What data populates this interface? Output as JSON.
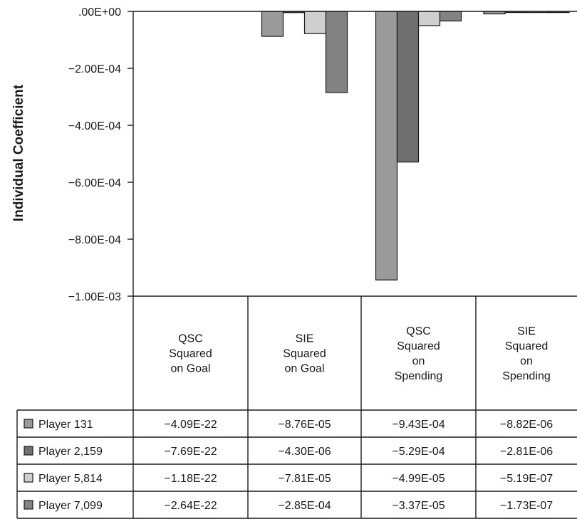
{
  "chart_data": {
    "type": "bar",
    "ylabel": "Individual Coefficient",
    "ylim": [
      -0.001,
      0
    ],
    "yticks": [
      {
        "value": 0,
        "label": ".00E+00"
      },
      {
        "value": -0.0002,
        "label": "−2.00E-04"
      },
      {
        "value": -0.0004,
        "label": "−4.00E-04"
      },
      {
        "value": -0.0006,
        "label": "−6.00E-04"
      },
      {
        "value": -0.0008,
        "label": "−8.00E-04"
      },
      {
        "value": -0.001,
        "label": "−1.00E-03"
      }
    ],
    "categories": [
      "QSC Squared on Goal",
      "SIE Squared on Goal",
      "QSC Squared on Spending",
      "SIE Squared on Spending"
    ],
    "category_lines": [
      [
        "QSC",
        "Squared",
        "on Goal"
      ],
      [
        "SIE",
        "Squared",
        "on Goal"
      ],
      [
        "QSC",
        "Squared",
        "on",
        "Spending"
      ],
      [
        "SIE",
        "Squared",
        "on",
        "Spending"
      ]
    ],
    "series": [
      {
        "name": "Player 131",
        "color": "#9a9a9a",
        "values": [
          -4.09e-22,
          -8.76e-05,
          -0.000943,
          -8.82e-06
        ],
        "labels": [
          "−4.09E-22",
          "−8.76E-05",
          "−9.43E-04",
          "−8.82E-06"
        ]
      },
      {
        "name": "Player 2,159",
        "color": "#707070",
        "values": [
          -7.69e-22,
          -4.3e-06,
          -0.000529,
          -2.81e-06
        ],
        "labels": [
          "−7.69E-22",
          "−4.30E-06",
          "−5.29E-04",
          "−2.81E-06"
        ]
      },
      {
        "name": "Player 5,814",
        "color": "#cfcfcf",
        "values": [
          -1.18e-22,
          -7.81e-05,
          -4.99e-05,
          -5.19e-07
        ],
        "labels": [
          "−1.18E-22",
          "−7.81E-05",
          "−4.99E-05",
          "−5.19E-07"
        ]
      },
      {
        "name": "Player 7,099",
        "color": "#828282",
        "values": [
          -2.64e-22,
          -0.000285,
          -3.37e-05,
          -1.73e-07
        ],
        "labels": [
          "−2.64E-22",
          "−2.85E-04",
          "−3.37E-05",
          "−1.73E-07"
        ]
      }
    ],
    "legend": "table-bottom",
    "grid": false
  }
}
